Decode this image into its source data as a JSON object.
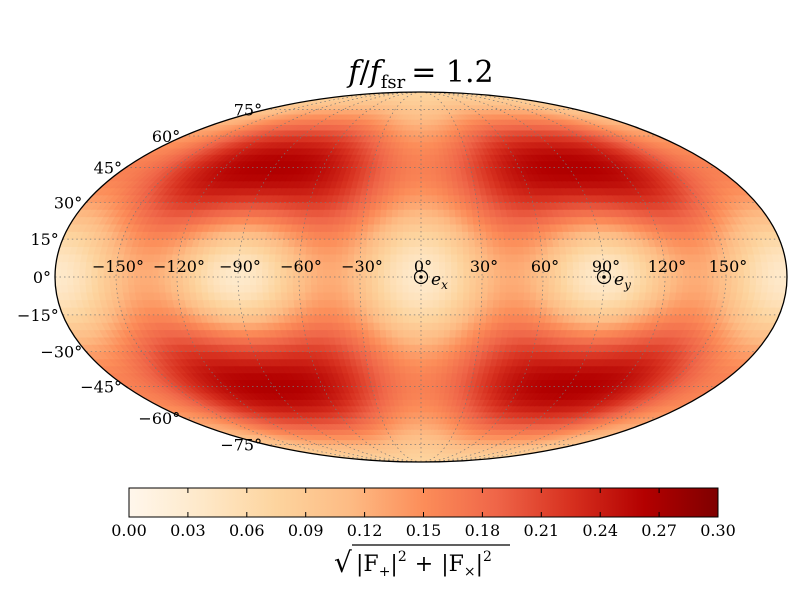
{
  "chart_data": {
    "type": "heatmap",
    "projection": "mollweide",
    "title": "f/f_fsr = 1.2",
    "title_parts": {
      "var": "f",
      "slash": "/",
      "sub_var": "f",
      "sub": "fsr",
      "eq": "= 1.2"
    },
    "lon_tick_labels": [
      "−150°",
      "−120°",
      "−90°",
      "−60°",
      "−30°",
      "0°",
      "30°",
      "60°",
      "90°",
      "120°",
      "150°"
    ],
    "lon_ticks": [
      -150,
      -120,
      -90,
      -60,
      -30,
      0,
      30,
      60,
      90,
      120,
      150
    ],
    "lat_tick_labels": [
      "75°",
      "60°",
      "45°",
      "30°",
      "15°",
      "0°",
      "−15°",
      "−30°",
      "−45°",
      "−60°",
      "−75°"
    ],
    "lat_ticks": [
      75,
      60,
      45,
      30,
      15,
      0,
      -15,
      -30,
      -45,
      -60,
      -75
    ],
    "grid": true,
    "markers": [
      {
        "name": "e_x",
        "label_var": "e",
        "label_sub": "x",
        "lon": 0,
        "lat": 0
      },
      {
        "name": "e_y",
        "label_var": "e",
        "label_sub": "y",
        "lon": 90,
        "lat": 0
      }
    ],
    "colorbar": {
      "range": [
        0.0,
        0.3
      ],
      "tick_labels": [
        "0.00",
        "0.03",
        "0.06",
        "0.09",
        "0.12",
        "0.15",
        "0.18",
        "0.21",
        "0.24",
        "0.27",
        "0.30"
      ],
      "ticks": [
        0.0,
        0.03,
        0.06,
        0.09,
        0.12,
        0.15,
        0.18,
        0.21,
        0.24,
        0.27,
        0.3
      ],
      "label": "√(|F₊|² + |F×|²)",
      "label_parts": {
        "radical": "√",
        "a": "|F",
        "a_sub": "+",
        "a_sup": "2",
        "plus": "+",
        "b": "|F",
        "b_sub": "×",
        "b_sup": "2",
        "bar": "|"
      },
      "colormap": [
        "#fff5eb",
        "#fee6ce",
        "#fdd0a2",
        "#fdae6b",
        "#fd8d3c",
        "#f16913",
        "#d94801",
        "#a63603",
        "#7f2704"
      ],
      "colormap_display": [
        "#fff7ec",
        "#fee8c8",
        "#fdd49e",
        "#fdbb84",
        "#fc8d59",
        "#ef6548",
        "#d7301f",
        "#b30000",
        "#7f0000"
      ]
    }
  }
}
